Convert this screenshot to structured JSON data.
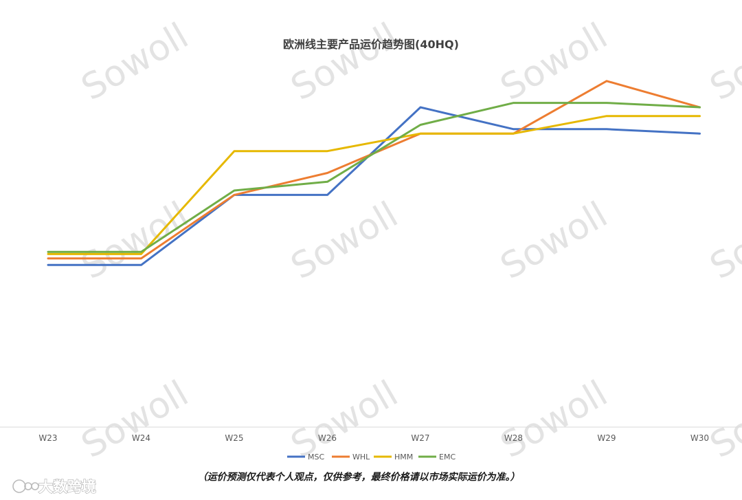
{
  "chart_data": {
    "type": "line",
    "title": "欧洲线主要产品运价趋势图(40HQ)",
    "categories": [
      "W23",
      "W24",
      "W25",
      "W26",
      "W27",
      "W28",
      "W29",
      "W30"
    ],
    "xlabel": "",
    "ylabel": "",
    "ylim": [
      0,
      100
    ],
    "grid": false,
    "legend_position": "bottom",
    "series": [
      {
        "name": "MSC",
        "color": "#4472c4",
        "values": [
          37,
          37,
          53,
          53,
          73,
          68,
          68,
          67
        ]
      },
      {
        "name": "WHL",
        "color": "#ed7d31",
        "values": [
          38.5,
          38.5,
          53,
          58,
          67,
          67,
          79,
          73
        ]
      },
      {
        "name": "HMM",
        "color": "#e6b800",
        "values": [
          39.5,
          39.5,
          63,
          63,
          67,
          67,
          71,
          71
        ]
      },
      {
        "name": "EMC",
        "color": "#70ad47",
        "values": [
          40,
          40,
          54,
          56,
          69,
          74,
          74,
          73
        ]
      }
    ]
  },
  "watermark": {
    "text": "Sowoll"
  },
  "disclaimer": "（运价预测仅代表个人观点，仅供参考，最终价格请以市场实际运价为准。）",
  "logo": {
    "text": "大数跨境"
  }
}
